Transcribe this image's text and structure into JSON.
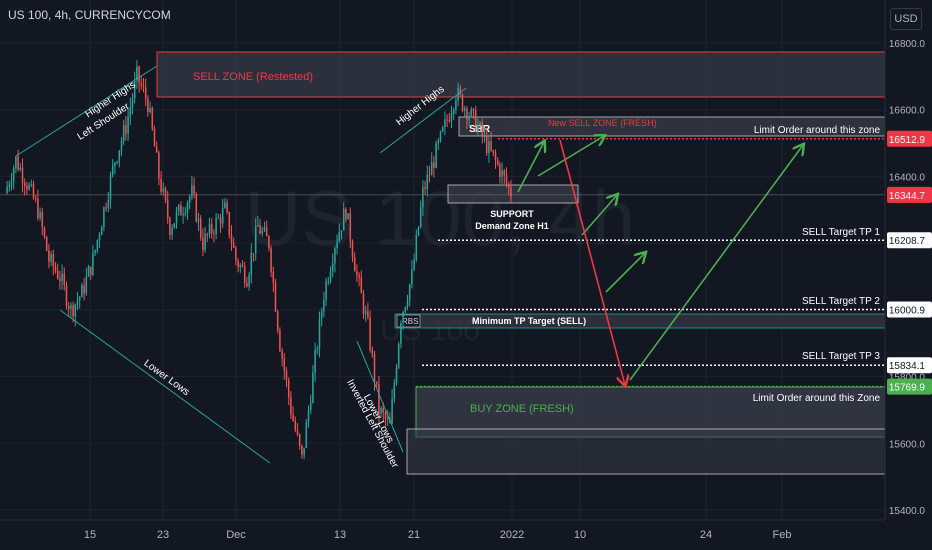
{
  "header": {
    "title": "US 100, 4h, CURRENCYCOM",
    "currency": "USD"
  },
  "watermark": {
    "symbol": "US 100, 4h",
    "name": "US 100"
  },
  "colors": {
    "bg": "#131722",
    "grid": "#1f2330",
    "up": "#26a69a",
    "down": "#ef5350",
    "sell": "#f23645",
    "buy": "#4caf50",
    "text": "#d1d4dc",
    "zone": "#2a2e39"
  },
  "chart_data": {
    "type": "candlestick",
    "ylim": [
      15400,
      16850
    ],
    "y_ticks": [
      16800,
      16600,
      16400,
      16200,
      16000,
      15800,
      15600,
      15400
    ],
    "x_ticks": [
      "15",
      "23",
      "Dec",
      "13",
      "21",
      "2022",
      "10",
      "24",
      "Feb"
    ],
    "price_labels": [
      {
        "label": "16512.9",
        "value": 16512.9,
        "color": "#f23645"
      },
      {
        "label": "16344.7",
        "value": 16344.7,
        "color": "#f23645"
      },
      {
        "label": "16208.7",
        "value": 16208.7,
        "color": "#ffffff"
      },
      {
        "label": "16000.9",
        "value": 16000.9,
        "color": "#ffffff"
      },
      {
        "label": "15834.1",
        "value": 15834.1,
        "color": "#ffffff"
      },
      {
        "label": "15769.9",
        "value": 15769.9,
        "color": "#4caf50"
      }
    ],
    "series": [
      {
        "values": [
          16350,
          16450,
          16380,
          16300,
          16150,
          16100,
          16000,
          16050,
          16150,
          16300,
          16450,
          16550,
          16700,
          16620,
          16400,
          16250,
          16300,
          16350,
          16200,
          16250,
          16300,
          16150,
          16100,
          16250,
          16200,
          15900,
          15700,
          15550,
          15800,
          16050,
          16200,
          16300,
          16100,
          15950,
          15700,
          15650,
          15980,
          16100,
          16350,
          16450,
          16550,
          16650,
          16600,
          16550,
          16480,
          16420,
          16350
        ]
      }
    ]
  },
  "zones": {
    "sell_restested": "SELL ZONE (Restested)",
    "new_sell": "New SELL ZONE (FRESH)",
    "buy": "BUY ZONE (FRESH)",
    "rbs": "RBS",
    "sbr": "SBR",
    "min_tp": "Minimum TP Target (SELL)",
    "support_line1": "SUPPORT",
    "support_line2": "Demand Zone H1"
  },
  "annotations": {
    "higher_highs_1": "Higher Highs",
    "left_shoulder": "Left Shoulder",
    "higher_highs_2": "Higher Highs",
    "lower_lows_1": "Lower Lows",
    "lower_lows_2": "Lower Lows",
    "inverted_shoulder": "Inverted Left Shoulder",
    "limit_sell": "Limit Order around this zone",
    "limit_buy": "Limit Order around this Zone",
    "tp1": "SELL Target TP 1",
    "tp2": "SELL Target TP 2",
    "tp3": "SELL Target TP 3"
  }
}
